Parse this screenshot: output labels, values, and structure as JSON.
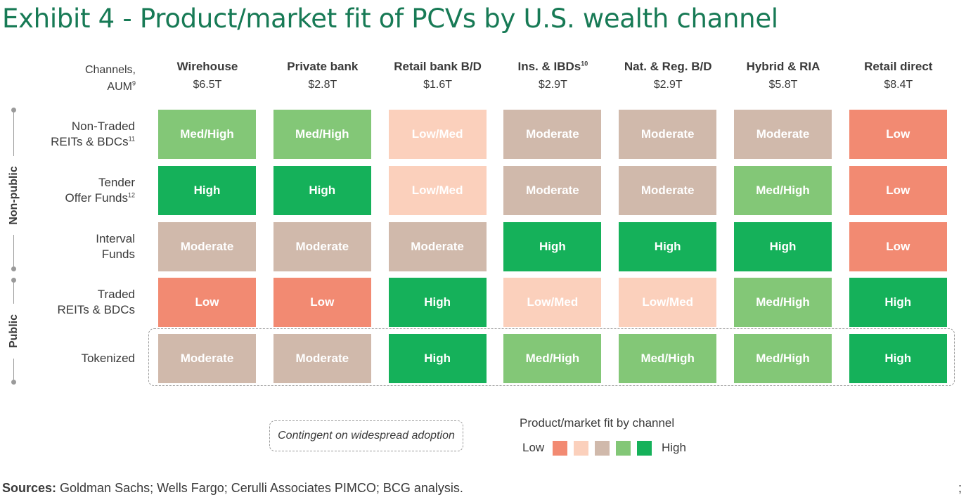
{
  "title": "Exhibit 4 - Product/market fit of PCVs by U.S. wealth channel",
  "corner": {
    "line1": "Channels,",
    "line2": "AUM",
    "line2_sup": "9"
  },
  "colors": {
    "High": "#15b15a",
    "Med/High": "#83c777",
    "Moderate": "#d0b9ab",
    "Low/Med": "#fbd0bc",
    "Low": "#f28a72",
    "title": "#177a55"
  },
  "chart_data": {
    "type": "heatmap",
    "title": "Exhibit 4 - Product/market fit of PCVs by U.S. wealth channel",
    "columns": [
      {
        "name": "Wirehouse",
        "sup": "",
        "aum": "$6.5T"
      },
      {
        "name": "Private bank",
        "sup": "",
        "aum": "$2.8T"
      },
      {
        "name": "Retail bank B/D",
        "sup": "",
        "aum": "$1.6T"
      },
      {
        "name": "Ins. & IBDs",
        "sup": "10",
        "aum": "$2.9T"
      },
      {
        "name": "Nat. & Reg. B/D",
        "sup": "",
        "aum": "$2.9T"
      },
      {
        "name": "Hybrid & RIA",
        "sup": "",
        "aum": "$5.8T"
      },
      {
        "name": "Retail direct",
        "sup": "",
        "aum": "$8.4T"
      }
    ],
    "rows": [
      {
        "label1": "Non-Traded",
        "label2": "REITs & BDCs",
        "sup": "11",
        "group": "Non-public",
        "values": [
          "Med/High",
          "Med/High",
          "Low/Med",
          "Moderate",
          "Moderate",
          "Moderate",
          "Low"
        ]
      },
      {
        "label1": "Tender",
        "label2": "Offer Funds",
        "sup": "12",
        "group": "Non-public",
        "values": [
          "High",
          "High",
          "Low/Med",
          "Moderate",
          "Moderate",
          "Med/High",
          "Low"
        ]
      },
      {
        "label1": "Interval",
        "label2": "Funds",
        "sup": "",
        "group": "Non-public",
        "values": [
          "Moderate",
          "Moderate",
          "Moderate",
          "High",
          "High",
          "High",
          "Low"
        ]
      },
      {
        "label1": "Traded",
        "label2": "REITs & BDCs",
        "sup": "",
        "group": "Public",
        "values": [
          "Low",
          "Low",
          "High",
          "Low/Med",
          "Low/Med",
          "Med/High",
          "High"
        ]
      },
      {
        "label1": "Tokenized",
        "label2": "",
        "sup": "",
        "group": "Public",
        "values": [
          "Moderate",
          "Moderate",
          "High",
          "Med/High",
          "Med/High",
          "Med/High",
          "High"
        ]
      }
    ],
    "groups": [
      "Non-public",
      "Public"
    ],
    "scale": [
      "Low",
      "Low/Med",
      "Moderate",
      "Med/High",
      "High"
    ]
  },
  "contingent_note": "Contingent on widespread adoption",
  "legend": {
    "title": "Product/market fit by channel",
    "low": "Low",
    "high": "High"
  },
  "sources": {
    "label": "Sources:",
    "text": " Goldman Sachs; Wells Fargo; Cerulli Associates PIMCO; BCG analysis.",
    "trailing": ";"
  }
}
